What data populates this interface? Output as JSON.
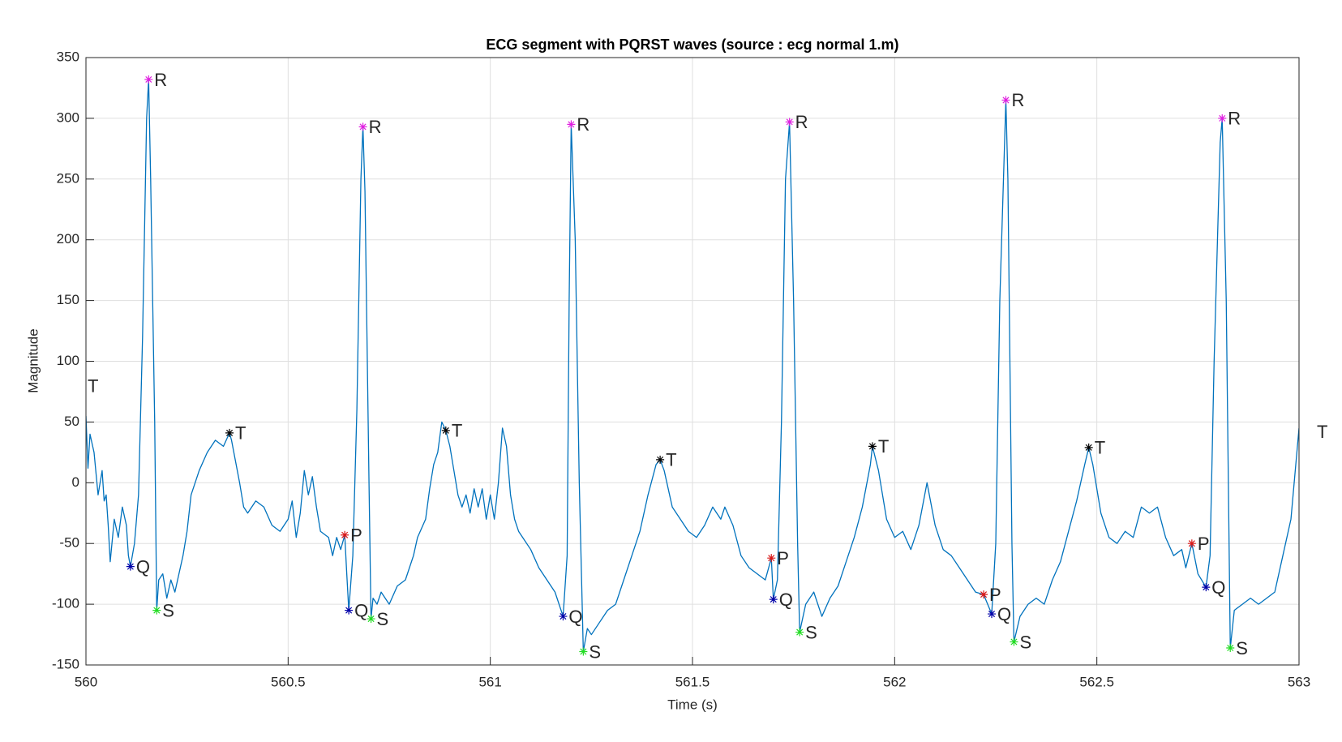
{
  "chart_data": {
    "type": "line",
    "title": "ECG segment with PQRST waves (source : ecg normal 1.m)",
    "xlabel": "Time (s)",
    "ylabel": "Magnitude",
    "color": "#0072bd",
    "xlim": [
      560,
      563
    ],
    "ylim": [
      -150,
      350
    ],
    "xticks": [
      560,
      560.5,
      561,
      561.5,
      562,
      562.5,
      563
    ],
    "yticks": [
      -150,
      -100,
      -50,
      0,
      50,
      100,
      150,
      200,
      250,
      300,
      350
    ],
    "grid": true,
    "x": [
      560.0,
      560.005,
      560.01,
      560.02,
      560.03,
      560.04,
      560.045,
      560.05,
      560.055,
      560.06,
      560.07,
      560.08,
      560.09,
      560.1,
      560.105,
      560.11,
      560.12,
      560.13,
      560.14,
      560.15,
      560.155,
      560.16,
      560.17,
      560.175,
      560.18,
      560.19,
      560.2,
      560.21,
      560.22,
      560.23,
      560.24,
      560.25,
      560.26,
      560.28,
      560.3,
      560.32,
      560.34,
      560.355,
      560.36,
      560.38,
      560.39,
      560.4,
      560.42,
      560.44,
      560.46,
      560.48,
      560.5,
      560.51,
      560.52,
      560.53,
      560.54,
      560.55,
      560.56,
      560.57,
      560.58,
      560.6,
      560.61,
      560.62,
      560.63,
      560.64,
      560.645,
      560.65,
      560.66,
      560.67,
      560.68,
      560.685,
      560.69,
      560.7,
      560.705,
      560.71,
      560.72,
      560.73,
      560.75,
      560.77,
      560.79,
      560.81,
      560.82,
      560.84,
      560.85,
      560.86,
      560.87,
      560.88,
      560.89,
      560.9,
      560.91,
      560.92,
      560.93,
      560.94,
      560.95,
      560.96,
      560.97,
      560.98,
      560.99,
      561.0,
      561.01,
      561.02,
      561.03,
      561.04,
      561.05,
      561.06,
      561.07,
      561.08,
      561.1,
      561.12,
      561.14,
      561.16,
      561.18,
      561.19,
      561.195,
      561.2,
      561.21,
      561.22,
      561.23,
      561.24,
      561.25,
      561.27,
      561.29,
      561.31,
      561.33,
      561.35,
      561.37,
      561.39,
      561.41,
      561.42,
      561.43,
      561.45,
      561.47,
      561.49,
      561.51,
      561.53,
      561.55,
      561.57,
      561.58,
      561.6,
      561.62,
      561.64,
      561.66,
      561.68,
      561.695,
      561.7,
      561.71,
      561.72,
      561.73,
      561.74,
      561.75,
      561.76,
      561.765,
      561.78,
      561.8,
      561.82,
      561.84,
      561.86,
      561.88,
      561.9,
      561.92,
      561.94,
      561.945,
      561.96,
      561.98,
      562.0,
      562.02,
      562.04,
      562.06,
      562.08,
      562.1,
      562.12,
      562.14,
      562.16,
      562.18,
      562.2,
      562.22,
      562.23,
      562.24,
      562.25,
      562.26,
      562.275,
      562.28,
      562.29,
      562.295,
      562.31,
      562.33,
      562.35,
      562.37,
      562.39,
      562.41,
      562.43,
      562.45,
      562.47,
      562.48,
      562.49,
      562.51,
      562.53,
      562.55,
      562.57,
      562.59,
      562.61,
      562.63,
      562.65,
      562.67,
      562.69,
      562.71,
      562.72,
      562.735,
      562.75,
      562.77,
      562.78,
      562.79,
      562.805,
      562.81,
      562.82,
      562.83,
      562.84,
      562.86,
      562.88,
      562.9,
      562.92,
      562.94,
      562.96,
      562.98,
      563.0
    ],
    "values": [
      55,
      12,
      40,
      25,
      -10,
      10,
      -15,
      -10,
      -35,
      -65,
      -30,
      -45,
      -20,
      -35,
      -60,
      -69,
      -50,
      -10,
      120,
      300,
      332,
      250,
      50,
      -105,
      -80,
      -75,
      -95,
      -80,
      -90,
      -75,
      -60,
      -40,
      -10,
      10,
      25,
      35,
      30,
      41,
      35,
      0,
      -20,
      -25,
      -15,
      -20,
      -35,
      -40,
      -30,
      -15,
      -45,
      -25,
      10,
      -10,
      5,
      -20,
      -40,
      -45,
      -60,
      -45,
      -55,
      -43,
      -75,
      -105,
      -60,
      60,
      250,
      293,
      240,
      0,
      -112,
      -95,
      -100,
      -90,
      -100,
      -85,
      -80,
      -60,
      -45,
      -30,
      -5,
      15,
      25,
      50,
      43,
      30,
      10,
      -10,
      -20,
      -10,
      -25,
      -5,
      -20,
      -5,
      -30,
      -10,
      -30,
      0,
      45,
      30,
      -10,
      -30,
      -40,
      -45,
      -55,
      -70,
      -80,
      -90,
      -110,
      -60,
      150,
      295,
      200,
      0,
      -139,
      -120,
      -125,
      -115,
      -105,
      -100,
      -80,
      -60,
      -40,
      -10,
      15,
      19,
      10,
      -20,
      -30,
      -40,
      -45,
      -35,
      -20,
      -30,
      -20,
      -35,
      -60,
      -70,
      -75,
      -80,
      -62,
      -96,
      -80,
      50,
      250,
      297,
      150,
      -50,
      -123,
      -100,
      -90,
      -110,
      -95,
      -85,
      -65,
      -45,
      -20,
      15,
      30,
      10,
      -30,
      -45,
      -40,
      -55,
      -35,
      0,
      -35,
      -55,
      -60,
      -70,
      -80,
      -90,
      -92,
      -100,
      -108,
      -50,
      150,
      315,
      250,
      -50,
      -131,
      -110,
      -100,
      -95,
      -100,
      -80,
      -65,
      -40,
      -15,
      15,
      29,
      15,
      -25,
      -45,
      -50,
      -40,
      -45,
      -20,
      -25,
      -20,
      -45,
      -60,
      -55,
      -70,
      -50,
      -75,
      -86,
      -60,
      100,
      280,
      300,
      150,
      -136,
      -105,
      -100,
      -95,
      -100,
      -95,
      -90,
      -60,
      -30,
      45
    ],
    "markers": [
      {
        "name": "R",
        "color": "#e020e0",
        "x": [
          560.155,
          560.685,
          561.2,
          561.74,
          562.275,
          562.81
        ],
        "values": [
          332,
          293,
          295,
          297,
          315,
          300
        ]
      },
      {
        "name": "Q",
        "color": "#0000a8",
        "x": [
          560.11,
          560.65,
          561.18,
          561.7,
          562.24,
          562.77
        ],
        "values": [
          -69,
          -105,
          -110,
          -96,
          -108,
          -86
        ]
      },
      {
        "name": "S",
        "color": "#22dd22",
        "x": [
          560.175,
          560.705,
          561.23,
          561.765,
          562.295,
          562.83
        ],
        "values": [
          -105,
          -112,
          -139,
          -123,
          -131,
          -136
        ]
      },
      {
        "name": "T",
        "color": "#000000",
        "x": [
          559.99,
          560.355,
          560.89,
          561.42,
          561.945,
          562.48,
          563.03
        ],
        "values": [
          80,
          41,
          43,
          19,
          30,
          29,
          42
        ]
      },
      {
        "name": "P",
        "color": "#d81818",
        "x": [
          560.64,
          561.695,
          562.22,
          562.735
        ],
        "values": [
          -43,
          -62,
          -92,
          -50
        ]
      }
    ]
  }
}
